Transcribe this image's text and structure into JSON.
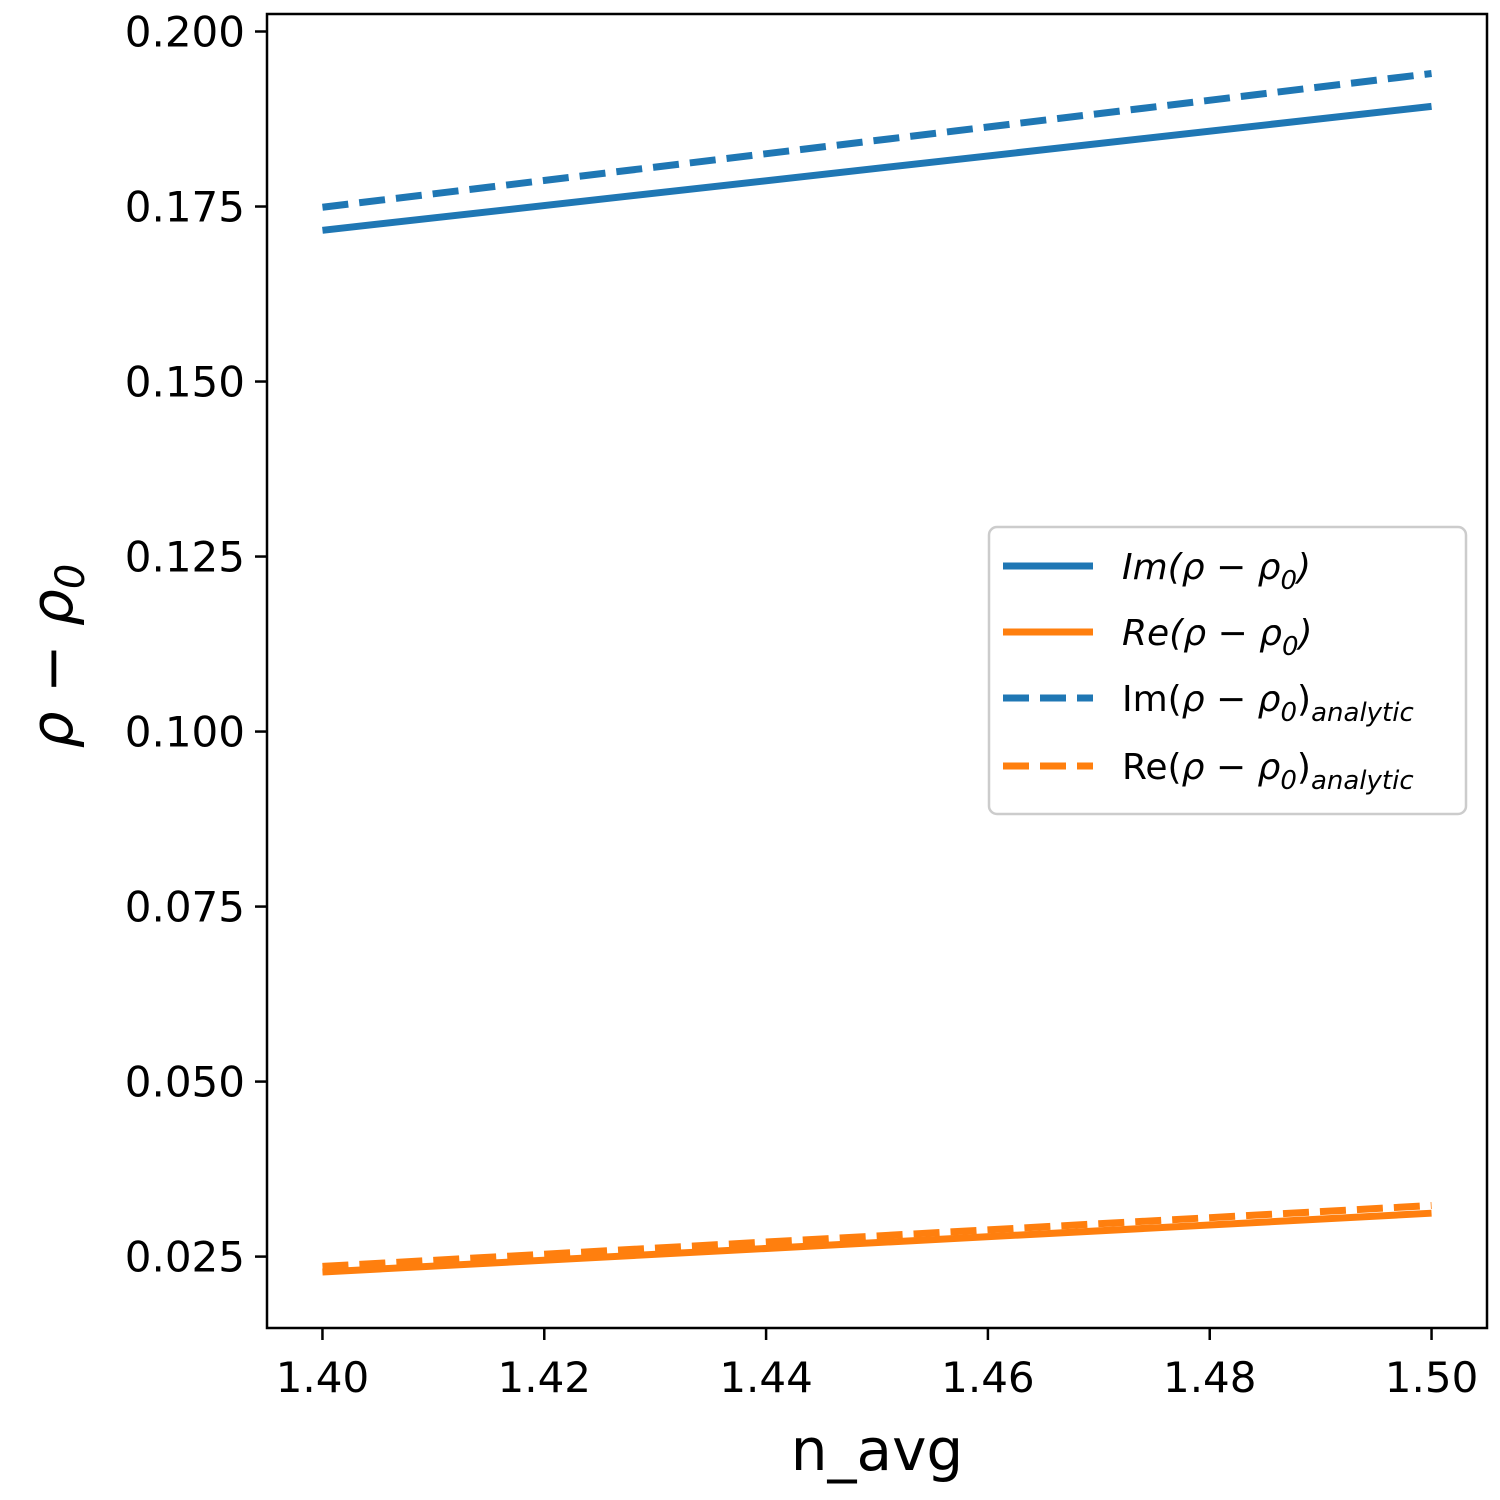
{
  "chart_data": {
    "type": "line",
    "xlabel": "n_avg",
    "ylabel_main": "ρ − ρ",
    "ylabel_sub": "0",
    "xlim": [
      1.395,
      1.505
    ],
    "ylim": [
      0.0148,
      0.2025
    ],
    "xticks": [
      1.4,
      1.42,
      1.44,
      1.46,
      1.48,
      1.5
    ],
    "xtick_labels": [
      "1.40",
      "1.42",
      "1.44",
      "1.46",
      "1.48",
      "1.50"
    ],
    "yticks": [
      0.025,
      0.05,
      0.075,
      0.1,
      0.125,
      0.15,
      0.175,
      0.2
    ],
    "ytick_labels": [
      "0.025",
      "0.050",
      "0.075",
      "0.100",
      "0.125",
      "0.150",
      "0.175",
      "0.200"
    ],
    "grid": false,
    "legend_position": "center-right",
    "series": [
      {
        "id": "im",
        "color": "#1f77b4",
        "dash": "solid",
        "x": [
          1.4,
          1.5
        ],
        "y": [
          0.1716,
          0.1893
        ],
        "legend_parts": [
          {
            "text": "Im(ρ − ρ",
            "style": "italic",
            "sub": false
          },
          {
            "text": "0",
            "style": "italic",
            "sub": true
          },
          {
            "text": ")",
            "style": "italic",
            "sub": false
          }
        ]
      },
      {
        "id": "re",
        "color": "#ff7f0e",
        "dash": "solid",
        "x": [
          1.4,
          1.5
        ],
        "y": [
          0.0228,
          0.0312
        ],
        "legend_parts": [
          {
            "text": "Re(ρ − ρ",
            "style": "italic",
            "sub": false
          },
          {
            "text": "0",
            "style": "italic",
            "sub": true
          },
          {
            "text": ")",
            "style": "italic",
            "sub": false
          }
        ]
      },
      {
        "id": "im-analytic",
        "color": "#1f77b4",
        "dash": "dashed",
        "x": [
          1.4,
          1.5
        ],
        "y": [
          0.1749,
          0.194
        ],
        "legend_parts": [
          {
            "text": "Im(",
            "style": "normal",
            "sub": false
          },
          {
            "text": "ρ − ρ",
            "style": "italic",
            "sub": false
          },
          {
            "text": "0",
            "style": "italic",
            "sub": true
          },
          {
            "text": ")",
            "style": "normal",
            "sub": false
          },
          {
            "text": "analytic",
            "style": "italic",
            "sub": true
          }
        ]
      },
      {
        "id": "re-analytic",
        "color": "#ff7f0e",
        "dash": "dashed",
        "x": [
          1.4,
          1.5
        ],
        "y": [
          0.0236,
          0.0323
        ],
        "legend_parts": [
          {
            "text": "Re(",
            "style": "normal",
            "sub": false
          },
          {
            "text": "ρ − ρ",
            "style": "italic",
            "sub": false
          },
          {
            "text": "0",
            "style": "italic",
            "sub": true
          },
          {
            "text": ")",
            "style": "normal",
            "sub": false
          },
          {
            "text": "analytic",
            "style": "italic",
            "sub": true
          }
        ]
      }
    ]
  }
}
